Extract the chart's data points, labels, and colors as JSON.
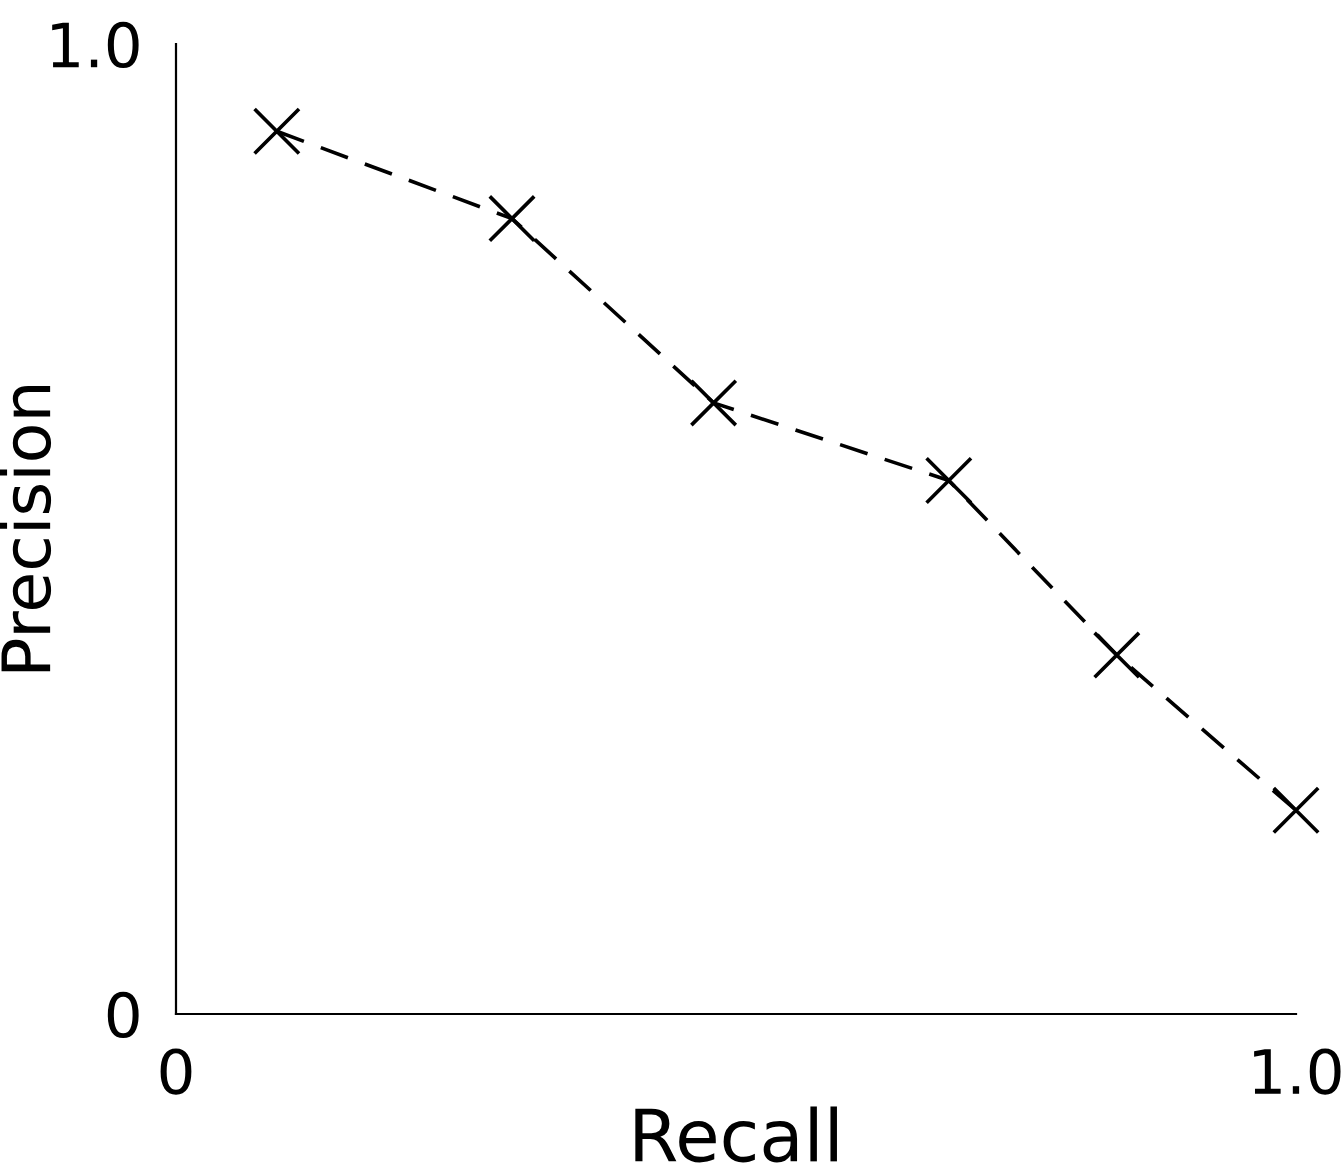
{
  "chart_data": {
    "type": "line",
    "xlabel": "Recall",
    "ylabel": "Precision",
    "x": [
      0.09,
      0.3,
      0.48,
      0.69,
      0.84,
      1.0
    ],
    "series": [
      {
        "color": "#000000",
        "values": [
          0.91,
          0.82,
          0.63,
          0.55,
          0.37,
          0.21
        ]
      }
    ],
    "xlim": [
      0,
      1.0
    ],
    "ylim": [
      0,
      1.0
    ],
    "xticks": [
      0,
      {
        "value": 1.0,
        "label": "1.0"
      }
    ],
    "yticks": [
      0,
      {
        "value": 1.0,
        "label": "1.0"
      }
    ],
    "marker": "cross",
    "line_style": "dashed",
    "grid": false,
    "legend": false
  }
}
